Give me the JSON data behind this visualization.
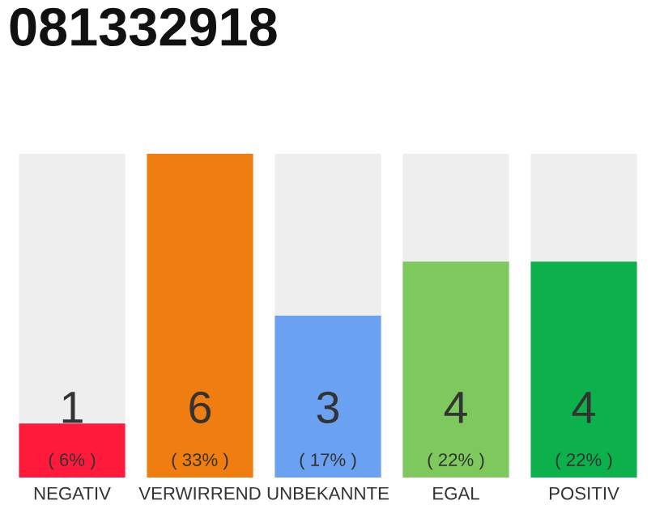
{
  "chart_data": {
    "type": "bar",
    "title": "081332918",
    "categories": [
      "NEGATIV",
      "VERWIRREND",
      "UNBEKANNTE",
      "EGAL",
      "POSITIV"
    ],
    "values": [
      1,
      6,
      3,
      4,
      4
    ],
    "colors": [
      "#ff1a3c",
      "#f07d0f",
      "#6aa1f0",
      "#7dc95e",
      "#0db14b"
    ],
    "data_labels": true,
    "annotations": [
      "( 6% )",
      "( 33% )",
      "( 17% )",
      "( 22% )",
      "( 22% )"
    ],
    "tick_labels": "x",
    "grid": false,
    "legend": false
  }
}
